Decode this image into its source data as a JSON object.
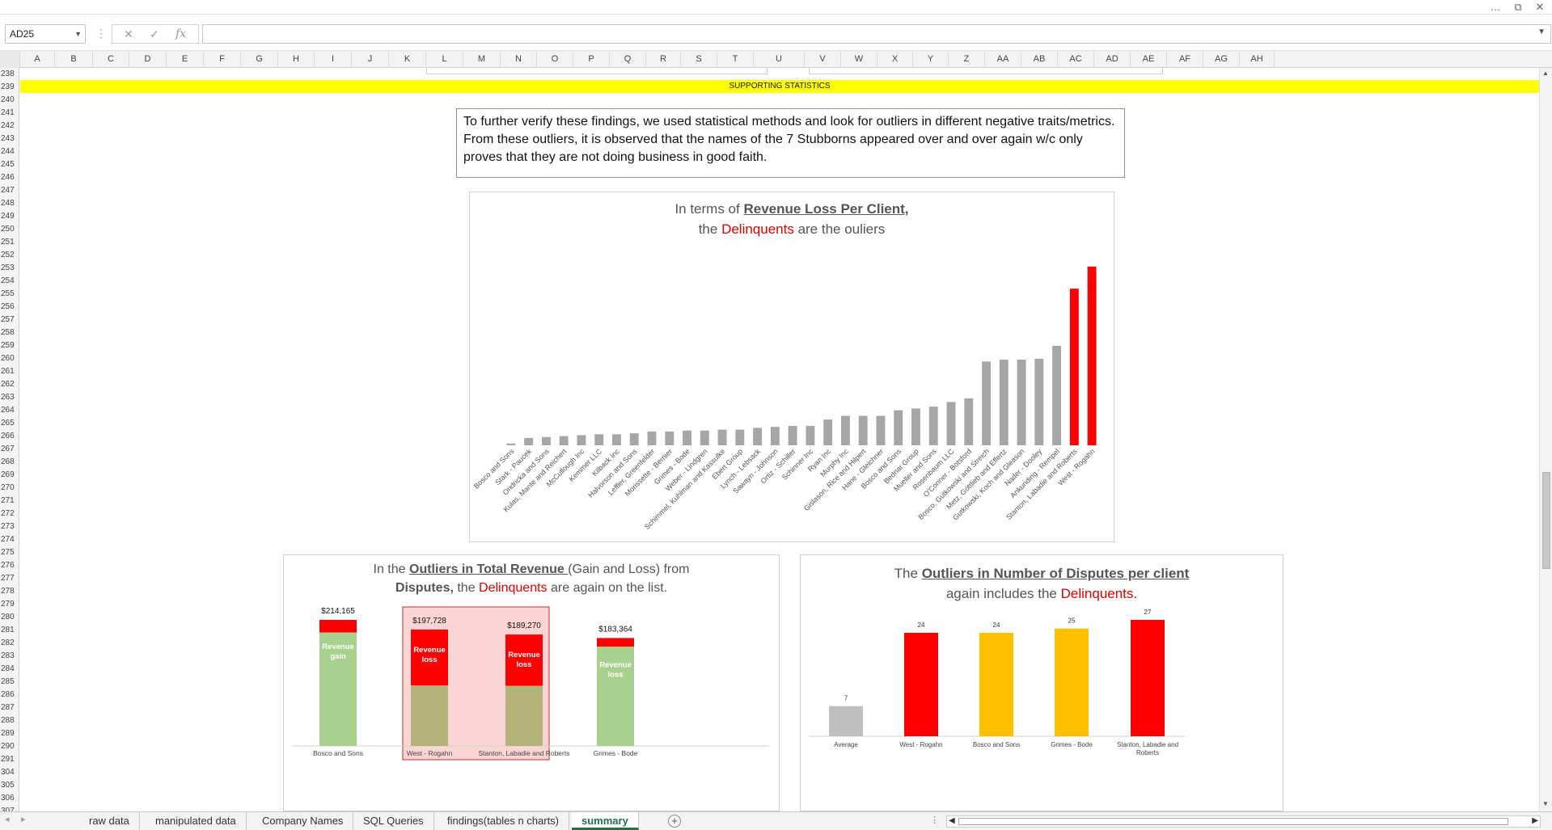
{
  "window": {
    "more_icon": "…",
    "restore_icon": "⧉",
    "close_icon": "✕"
  },
  "formula_bar": {
    "name_box": "AD25",
    "cancel_icon": "✕",
    "enter_icon": "✓",
    "fx_label": "fx",
    "value": ""
  },
  "columns": [
    "A",
    "B",
    "C",
    "D",
    "E",
    "F",
    "G",
    "H",
    "I",
    "J",
    "K",
    "L",
    "M",
    "N",
    "O",
    "P",
    "Q",
    "R",
    "S",
    "T",
    "U",
    "V",
    "W",
    "X",
    "Y",
    "Z",
    "AA",
    "AB",
    "AC",
    "AD",
    "AE",
    "AF",
    "AG",
    "AH"
  ],
  "rows": [
    "238",
    "239",
    "240",
    "241",
    "242",
    "243",
    "244",
    "245",
    "246",
    "247",
    "248",
    "249",
    "250",
    "251",
    "252",
    "253",
    "254",
    "255",
    "256",
    "257",
    "258",
    "259",
    "260",
    "261",
    "262",
    "263",
    "264",
    "265",
    "266",
    "267",
    "268",
    "269",
    "270",
    "271",
    "272",
    "273",
    "274",
    "275",
    "276",
    "277",
    "278",
    "279",
    "280",
    "281",
    "282",
    "283",
    "284",
    "285",
    "286",
    "287",
    "288",
    "289",
    "290",
    "291",
    "304",
    "305",
    "306",
    "307"
  ],
  "banner_text": "SUPPORTING STATISTICS",
  "note_text": "To further verify these findings, we used statistical methods and look for outliers in different negative traits/metrics. From these outliers, it is observed that the names of the 7 Stubborns appeared over and over again w/c only proves that they are not doing business in good faith.",
  "chart1_title": {
    "pre": "In terms of ",
    "bold": "Revenue Loss Per Client,",
    "line2_pre": "the ",
    "red": "Delinquents",
    "line2_post": " are the ouliers"
  },
  "chart2_title": {
    "pre": "In the ",
    "bold": "Outliers in Total Revenue ",
    "post": "(Gain and Loss) from",
    "line2_bold": "Disputes,",
    "line2_pre": " the ",
    "red": "Delinquents",
    "line2_post": " are again on the list."
  },
  "chart3_title": {
    "pre": "The ",
    "bold": "Outliers in Number of Disputes per client",
    "line2_pre": "again includes the ",
    "red": "Delinquents."
  },
  "colors": {
    "grey_bar": "#a6a6a6",
    "red_bar": "#ff0000",
    "green_bar": "#a9d18e",
    "olive_bar": "#b4b47a",
    "yellow_bar": "#ffc000",
    "avg_bar": "#bfbfbf",
    "highlight_fill": "#fbd5d5",
    "highlight_border": "#d04a4a"
  },
  "chart_data": [
    {
      "type": "bar",
      "title": "In terms of Revenue Loss Per Client, the Delinquents are the ouliers",
      "categories": [
        "Bosco and Sons",
        "Stark - Paucek",
        "Ondricka and Sons",
        "Kulas, Mante and Reichert",
        "McCullough Inc",
        "Kemmer LLC",
        "Kilback Inc",
        "Halvorson and Sons",
        "Leffler, Greenfelder",
        "Morissette - Bernier",
        "Grimes - Bode",
        "Weber - Lindgren",
        "Schimmel, Kuhlman and Kassulke",
        "Ebert Group",
        "Lynch - Lebsack",
        "Sawayn - Johnson",
        "Ortiz - Schiller",
        "Schinner Inc",
        "Ryan Inc",
        "Murphy Inc",
        "Gislason, Rice and Hilpert",
        "Hane - Gleichner",
        "Bosco and Sons",
        "Bednar Group",
        "Mueller and Sons",
        "Rosenbaum LLC",
        "O'Conner - Botsford",
        "Bosco, Gutkowski and Streich",
        "Metz, Gottlieb and Effertz",
        "Gutkowski, Koch and Gleason",
        "Nader - Dooley",
        "Ankunding - Rempel",
        "Stanton, Labadie and Roberts",
        "West - Rogahn"
      ],
      "values": [
        1,
        4,
        4.5,
        5,
        5.5,
        6,
        6,
        6.5,
        7.5,
        7.5,
        8,
        8,
        8.5,
        8.5,
        9.5,
        10,
        10.5,
        10.5,
        14,
        16,
        16,
        16,
        19,
        20,
        21,
        23.5,
        25.5,
        45.5,
        46.5,
        46.5,
        47,
        54,
        85,
        97
      ],
      "highlight_indices": [
        32,
        33
      ],
      "ylim": [
        0,
        100
      ]
    },
    {
      "type": "bar",
      "title": "In the Outliers in Total Revenue (Gain and Loss) from Disputes, the Delinquents are again on the list.",
      "categories": [
        "Bosco and Sons",
        "West - Rogahn",
        "Stanton, Labadie and Roberts",
        "Grimes - Bode"
      ],
      "totals": [
        "$214,165",
        "$197,728",
        "$189,270",
        "$183,364"
      ],
      "total_values": [
        214165,
        197728,
        189270,
        183364
      ],
      "series": [
        {
          "name": "bottom",
          "values": [
            0.9,
            0.52,
            0.54,
            0.92
          ]
        },
        {
          "name": "top",
          "values": [
            0.1,
            0.48,
            0.46,
            0.08
          ]
        }
      ],
      "segment_labels": [
        "Revenue gain",
        "Revenue loss",
        "Revenue loss",
        "Revenue loss"
      ],
      "highlighted": [
        1,
        2
      ]
    },
    {
      "type": "bar",
      "title": "The Outliers in Number of Disputes per client again includes the Delinquents.",
      "categories": [
        "Average",
        "West - Rogahn",
        "Bosco and Sons",
        "Grimes - Bode",
        "Stanton, Labadie and Roberts"
      ],
      "values": [
        7,
        24,
        24,
        25,
        27
      ],
      "ylim": [
        0,
        30
      ]
    }
  ],
  "tabs": [
    {
      "label": "raw data",
      "active": false
    },
    {
      "label": "manipulated data",
      "active": false
    },
    {
      "label": "Company Names",
      "active": false
    },
    {
      "label": "SQL Queries",
      "active": false
    },
    {
      "label": "findings(tables n charts)",
      "active": false
    },
    {
      "label": "summary",
      "active": true
    }
  ],
  "tab_nav": {
    "prev": "◂",
    "next": "▸",
    "more": "⋮",
    "add": "+"
  }
}
